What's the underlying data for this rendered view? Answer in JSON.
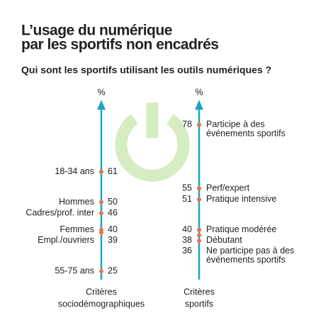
{
  "title": [
    "L’usage du numérique",
    "par les sportifs non encadrés"
  ],
  "subtitle": "Qui sont les sportifs utilisant les outils numériques ?",
  "chart_data": [
    {
      "type": "dot",
      "axis_label": "%",
      "label_side": "left",
      "color": "#e8734a",
      "axis_color": "#1ea3c6",
      "ylim": [
        22,
        86
      ],
      "categories": [
        [
          "18-34 ans"
        ],
        [
          "Hommes"
        ],
        [
          "Cadres/prof. inter"
        ],
        [
          "Femmes"
        ],
        [
          "Empl./ouvriers"
        ],
        [
          "55-75 ans"
        ]
      ],
      "values": [
        61,
        50,
        46,
        40,
        39,
        25
      ],
      "x_label": [
        "Critères",
        "sociodémographiques"
      ]
    },
    {
      "type": "dot",
      "axis_label": "%",
      "label_side": "right",
      "color": "#e8734a",
      "axis_color": "#1ea3c6",
      "ylim": [
        22,
        86
      ],
      "categories": [
        [
          "Participe à des",
          "événements sportifs"
        ],
        [
          "Perf/expert"
        ],
        [
          "Pratique intensive"
        ],
        [
          "Pratique modérée"
        ],
        [
          "Débutant"
        ],
        [
          "Ne participe pas à des",
          "événements sportifs"
        ]
      ],
      "values": [
        78,
        55,
        51,
        40,
        38,
        36
      ],
      "x_label": [
        "Critères",
        "sportifs"
      ]
    }
  ]
}
